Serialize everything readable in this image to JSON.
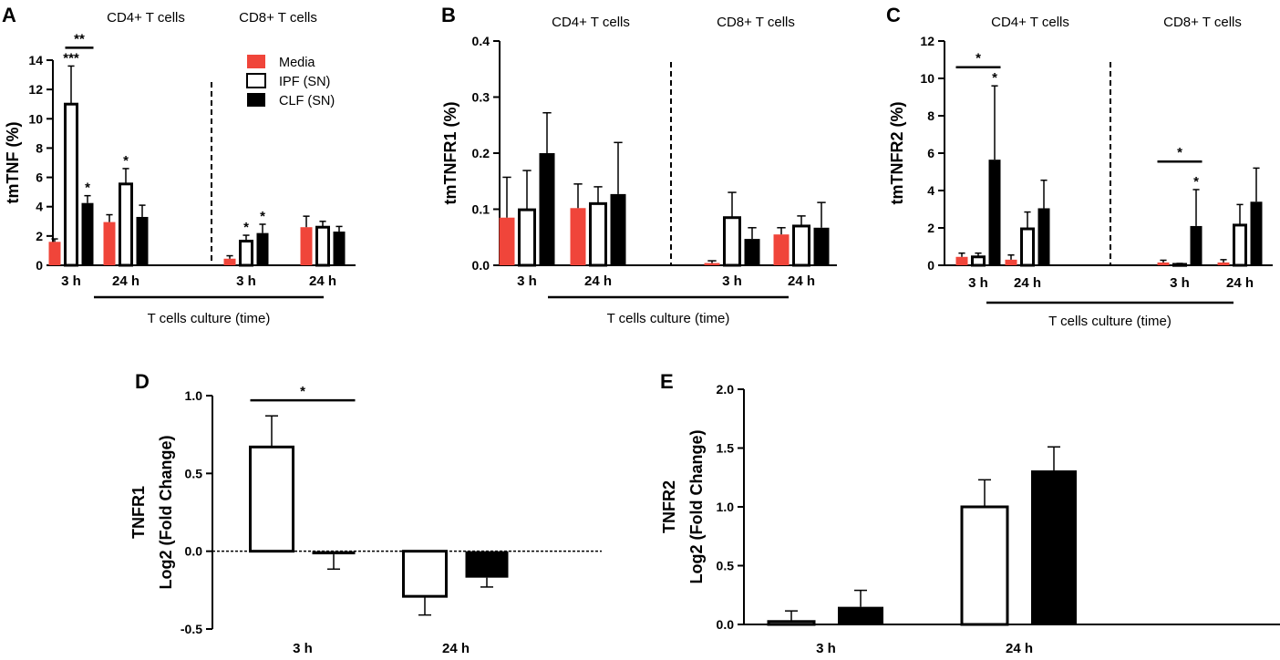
{
  "colors": {
    "media": "#f0453a",
    "ipf": "#ffffff",
    "clf": "#000000"
  },
  "legend": [
    {
      "key": "media",
      "label": "Media"
    },
    {
      "key": "ipf",
      "label": "IPF (SN)"
    },
    {
      "key": "clf",
      "label": "CLF (SN)"
    }
  ],
  "chart_data": [
    {
      "panel": "A",
      "type": "bar",
      "ylabel": "tmTNF (%)",
      "ylim": [
        0,
        14
      ],
      "yticks": [
        0,
        2,
        4,
        6,
        8,
        10,
        12,
        14
      ],
      "ytick_labels": [
        "0",
        "2",
        "4",
        "6",
        "8",
        "10",
        "12",
        "14"
      ],
      "group_titles": [
        "CD4+ T cells",
        "CD8+ T cells"
      ],
      "xlabel": "T cells culture (time)",
      "categories": [
        "3 h",
        "24 h",
        "3 h",
        "24 h"
      ],
      "series": [
        {
          "name": "Media",
          "key": "media",
          "values": [
            1.6,
            2.95,
            0.45,
            2.6
          ],
          "errors": [
            0.2,
            0.5,
            0.2,
            0.75
          ]
        },
        {
          "name": "IPF (SN)",
          "key": "ipf",
          "values": [
            11.0,
            5.55,
            1.65,
            2.6
          ],
          "errors": [
            2.6,
            1.05,
            0.4,
            0.4
          ]
        },
        {
          "name": "CLF (SN)",
          "key": "clf",
          "values": [
            4.25,
            3.3,
            2.2,
            2.3
          ],
          "errors": [
            0.5,
            0.8,
            0.6,
            0.35
          ]
        }
      ],
      "bar_annotations": [
        {
          "category": 0,
          "series": 1,
          "text": "***"
        },
        {
          "category": 0,
          "series": 2,
          "text": "*"
        },
        {
          "category": 1,
          "series": 1,
          "text": "*"
        },
        {
          "category": 2,
          "series": 1,
          "text": "*"
        },
        {
          "category": 2,
          "series": 2,
          "text": "*"
        }
      ],
      "brackets": [
        {
          "category": 0,
          "from": 1,
          "to": 2,
          "y": 14.85,
          "text": "**"
        }
      ]
    },
    {
      "panel": "B",
      "type": "bar",
      "ylabel": "tmTNFR1 (%)",
      "ylim": [
        0,
        0.4
      ],
      "yticks": [
        0,
        0.1,
        0.2,
        0.3,
        0.4
      ],
      "ytick_labels": [
        "0.0",
        "0.1",
        "0.2",
        "0.3",
        "0.4"
      ],
      "group_titles": [
        "CD4+ T cells",
        "CD8+ T cells"
      ],
      "xlabel": "T cells culture (time)",
      "categories": [
        "3 h",
        "24 h",
        "3 h",
        "24 h"
      ],
      "series": [
        {
          "name": "Media",
          "key": "media",
          "values": [
            0.085,
            0.102,
            0.004,
            0.055
          ],
          "errors": [
            0.072,
            0.043,
            0.004,
            0.012
          ]
        },
        {
          "name": "IPF (SN)",
          "key": "ipf",
          "values": [
            0.099,
            0.11,
            0.085,
            0.07
          ],
          "errors": [
            0.07,
            0.03,
            0.045,
            0.018
          ]
        },
        {
          "name": "CLF (SN)",
          "key": "clf",
          "values": [
            0.2,
            0.127,
            0.047,
            0.067
          ],
          "errors": [
            0.072,
            0.092,
            0.02,
            0.045
          ]
        }
      ],
      "bar_annotations": [],
      "brackets": []
    },
    {
      "panel": "C",
      "type": "bar",
      "ylabel": "tmTNFR2 (%)",
      "ylim": [
        0,
        12
      ],
      "yticks": [
        0,
        2,
        4,
        6,
        8,
        10,
        12
      ],
      "ytick_labels": [
        "0",
        "2",
        "4",
        "6",
        "8",
        "10",
        "12"
      ],
      "group_titles": [
        "CD4+ T cells",
        "CD8+ T cells"
      ],
      "xlabel": "T cells culture (time)",
      "categories": [
        "3 h",
        "24 h",
        "3 h",
        "24 h"
      ],
      "series": [
        {
          "name": "Media",
          "key": "media",
          "values": [
            0.45,
            0.3,
            0.15,
            0.15
          ],
          "errors": [
            0.2,
            0.25,
            0.12,
            0.15
          ]
        },
        {
          "name": "IPF (SN)",
          "key": "ipf",
          "values": [
            0.45,
            1.95,
            0.05,
            2.15
          ],
          "errors": [
            0.2,
            0.9,
            0.05,
            1.1
          ]
        },
        {
          "name": "CLF (SN)",
          "key": "clf",
          "values": [
            5.65,
            3.05,
            2.1,
            3.4
          ],
          "errors": [
            3.95,
            1.5,
            1.95,
            1.8
          ]
        }
      ],
      "bar_annotations": [
        {
          "category": 0,
          "series": 2,
          "text": "*"
        },
        {
          "category": 2,
          "series": 2,
          "text": "*"
        }
      ],
      "brackets": [
        {
          "category": 0,
          "from": 0,
          "to": 2,
          "y": 10.6,
          "text": "*"
        },
        {
          "category": 2,
          "from": 0,
          "to": 2,
          "y": 5.55,
          "text": "*"
        }
      ]
    },
    {
      "panel": "D",
      "type": "bar",
      "ylabel": [
        "TNFR1",
        "Log2 (Fold Change)"
      ],
      "ylim": [
        -0.5,
        1.0
      ],
      "yticks": [
        -0.5,
        0,
        0.5,
        1.0
      ],
      "ytick_labels": [
        "-0.5",
        "0.0",
        "0.5",
        "1.0"
      ],
      "categories": [
        "3 h",
        "24 h"
      ],
      "series": [
        {
          "name": "IPF (SN)",
          "key": "ipf",
          "values": [
            0.67,
            -0.29
          ],
          "errors": [
            0.2,
            0.12
          ]
        },
        {
          "name": "CLF (SN)",
          "key": "clf",
          "values": [
            -0.02,
            -0.17
          ],
          "errors": [
            0.095,
            0.06
          ]
        }
      ],
      "bar_annotations": [],
      "brackets": [
        {
          "category": 0,
          "from": 0,
          "to": 1,
          "y": 0.97,
          "text": "*"
        }
      ]
    },
    {
      "panel": "E",
      "type": "bar",
      "ylabel": [
        "TNFR2",
        "Log2 (Fold Change)"
      ],
      "ylim": [
        0,
        2.0
      ],
      "yticks": [
        0,
        0.5,
        1.0,
        1.5,
        2.0
      ],
      "ytick_labels": [
        "0.0",
        "0.5",
        "1.0",
        "1.5",
        "2.0"
      ],
      "categories": [
        "3 h",
        "24 h"
      ],
      "series": [
        {
          "name": "IPF (SN)",
          "key": "ipf",
          "values": [
            0.025,
            1.0
          ],
          "errors": [
            0.09,
            0.23
          ]
        },
        {
          "name": "CLF (SN)",
          "key": "clf",
          "values": [
            0.15,
            1.31
          ],
          "errors": [
            0.14,
            0.2
          ]
        }
      ],
      "bar_annotations": [],
      "brackets": []
    }
  ]
}
